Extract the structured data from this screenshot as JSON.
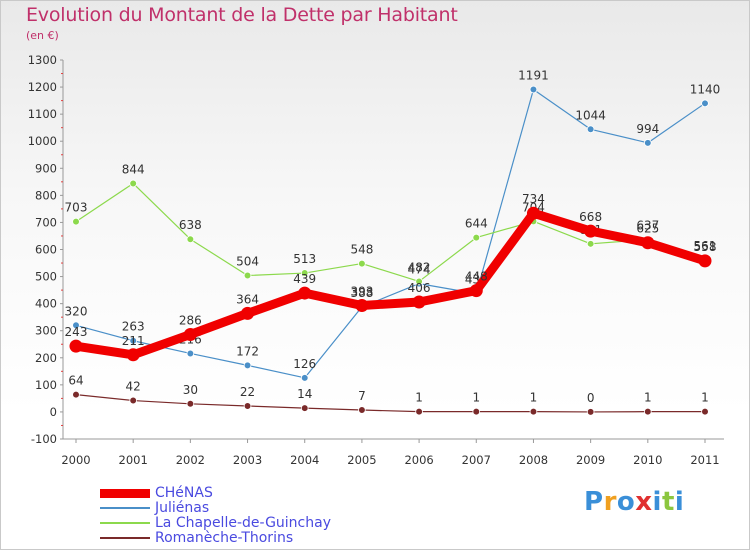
{
  "title": "Evolution du Montant de la Dette par Habitant",
  "subtitle": "(en €)",
  "logo": {
    "text": "Proxiti",
    "colors": [
      "#3a8fd8",
      "#f0a020",
      "#3a8fd8",
      "#e03030",
      "#3a8fd8",
      "#8cc63f",
      "#3a8fd8"
    ]
  },
  "chart_data": {
    "type": "line",
    "title": "Evolution du Montant de la Dette par Habitant",
    "ylabel": "(en €)",
    "xlabel": "",
    "ylim": [
      -100,
      1300
    ],
    "yticks": [
      -100,
      0,
      100,
      200,
      300,
      400,
      500,
      600,
      700,
      800,
      900,
      1000,
      1100,
      1200,
      1300
    ],
    "x": [
      "2000",
      "2001",
      "2002",
      "2003",
      "2004",
      "2005",
      "2006",
      "2007",
      "2008",
      "2009",
      "2010",
      "2011"
    ],
    "grid": false,
    "legend": "bottom-left",
    "series": [
      {
        "name": "Juliénas",
        "color": "#4a8fc8",
        "values": [
          320,
          263,
          216,
          172,
          126,
          388,
          474,
          437,
          1191,
          1044,
          994,
          1140
        ],
        "labels": [
          "320",
          "263",
          "216",
          "172",
          "126",
          "388",
          "474",
          "437",
          "1191",
          "1044",
          "994",
          "1140"
        ]
      },
      {
        "name": "La Chapelle-de-Guinchay",
        "color": "#8cd94c",
        "values": [
          703,
          844,
          638,
          504,
          513,
          548,
          482,
          644,
          704,
          621,
          637,
          561
        ],
        "labels": [
          "703",
          "844",
          "638",
          "504",
          "513",
          "548",
          "482",
          "644",
          "704",
          "621",
          "637",
          "561"
        ]
      },
      {
        "name": "Romanèche-Thorins",
        "color": "#7a2a2a",
        "values": [
          64,
          42,
          30,
          22,
          14,
          7,
          1,
          1,
          1,
          0,
          1,
          1
        ],
        "labels": [
          "64",
          "42",
          "30",
          "22",
          "14",
          "7",
          "1",
          "1",
          "1",
          "0",
          "1",
          "1"
        ]
      },
      {
        "name": "CHéNAS",
        "color": "#f00000",
        "values": [
          243,
          211,
          286,
          364,
          439,
          393,
          406,
          448,
          734,
          668,
          625,
          558
        ],
        "labels": [
          "243",
          "211",
          "286",
          "364",
          "439",
          "393",
          "406",
          "448",
          "734",
          "668",
          "625",
          "558"
        ]
      }
    ],
    "legend_order": [
      "CHéNAS",
      "Juliénas",
      "La Chapelle-de-Guinchay",
      "Romanèche-Thorins"
    ]
  }
}
